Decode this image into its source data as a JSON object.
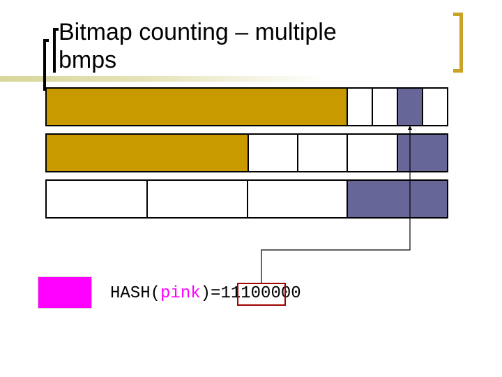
{
  "title": {
    "line1": "Bitmap counting – multiple",
    "line2": "bmps"
  },
  "colors": {
    "filled_block": "#c89a00",
    "set_bit": "#666699",
    "empty_cell": "#ffffff",
    "pink_key": "#ff00ff",
    "highlight_box": "#a00000"
  },
  "bitmaps": [
    {
      "row": 1,
      "cells": [
        "filled",
        "empty",
        "empty",
        "set",
        "empty"
      ]
    },
    {
      "row": 2,
      "cells": [
        "filled",
        "empty",
        "empty",
        "empty",
        "set"
      ]
    },
    {
      "row": 3,
      "cells": [
        "empty",
        "empty",
        "empty",
        "set"
      ]
    }
  ],
  "hash": {
    "prefix": "HASH(",
    "key": "pink",
    "suffix": ")=",
    "highlighted": "111",
    "rest": "00000"
  }
}
